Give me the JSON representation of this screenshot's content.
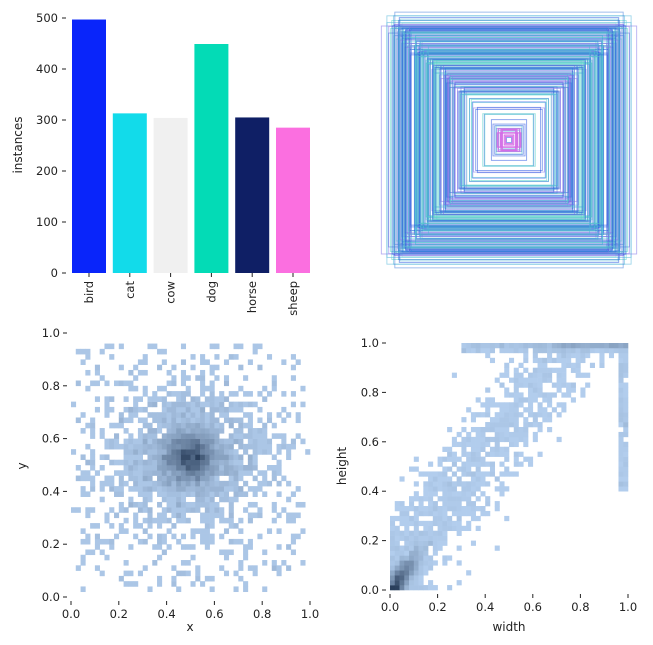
{
  "chart_data": [
    {
      "type": "bar",
      "title": "",
      "xlabel": "",
      "ylabel": "instances",
      "categories": [
        "bird",
        "cat",
        "cow",
        "dog",
        "horse",
        "sheep"
      ],
      "values": [
        497,
        313,
        304,
        449,
        305,
        285
      ],
      "colors": [
        "#0925fa",
        "#12dbea",
        "#f0f0f0",
        "#03dbb6",
        "#0f1f65",
        "#fb6fe0"
      ],
      "ylim": [
        0,
        500
      ],
      "yticks": [
        "0",
        "100",
        "200",
        "300",
        "400",
        "500"
      ]
    },
    {
      "type": "other",
      "description_kind": "bounding-box-overlay",
      "palette": [
        "#1f4fe0",
        "#3f7ad8",
        "#4fb4d8",
        "#58d6c9",
        "#7e6fe8",
        "#d46ae6"
      ]
    },
    {
      "type": "heatmap",
      "xlabel": "x",
      "ylabel": "y",
      "xlim": [
        0,
        1
      ],
      "ylim": [
        0,
        1
      ],
      "xticks": [
        "0.0",
        "0.2",
        "0.4",
        "0.6",
        "0.8",
        "1.0"
      ],
      "yticks": [
        "0.0",
        "0.2",
        "0.4",
        "0.6",
        "0.8",
        "1.0"
      ],
      "center": [
        0.5,
        0.53
      ],
      "color_low": "#b8d4f4",
      "color_high": "#2a3f5c"
    },
    {
      "type": "heatmap",
      "xlabel": "width",
      "ylabel": "height",
      "xlim": [
        0,
        1
      ],
      "ylim": [
        0,
        1
      ],
      "xticks": [
        "0.0",
        "0.2",
        "0.4",
        "0.6",
        "0.8",
        "1.0"
      ],
      "yticks": [
        "0.0",
        "0.2",
        "0.4",
        "0.6",
        "0.8",
        "1.0"
      ],
      "density_peak": [
        0.05,
        0.05
      ],
      "color_low": "#b8d4f4",
      "color_high": "#2a3f5c"
    }
  ]
}
